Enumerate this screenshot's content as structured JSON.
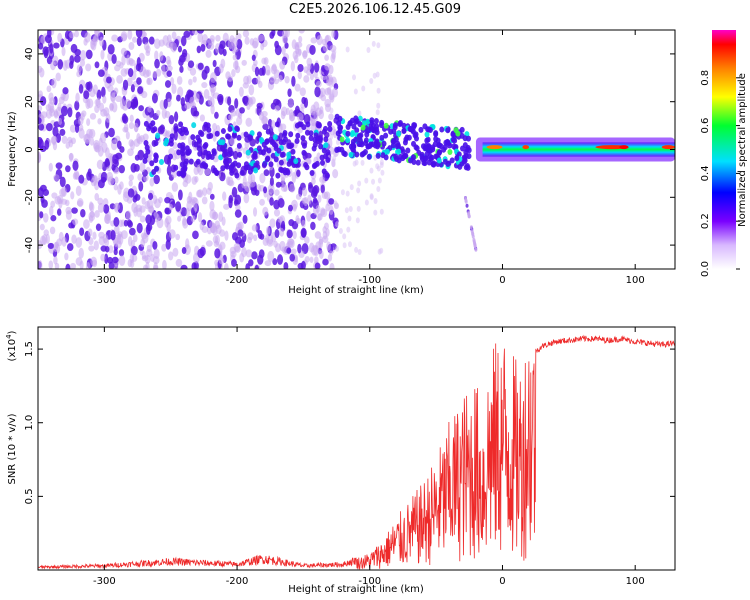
{
  "title": "C2E5.2026.106.12.45.G09",
  "colors": {
    "axis": "#000000",
    "snr_line": "#ee2a2a",
    "scatter_light": "#c8a8f0",
    "scatter_dark": "#5a18e0"
  },
  "chart_data": [
    {
      "type": "heatmap",
      "xlabel": "Height of straight line (km)",
      "ylabel": "Frequency (Hz)",
      "xlim": [
        -350,
        130
      ],
      "ylim": [
        -50,
        50
      ],
      "xticks": [
        -300,
        -200,
        -100,
        0,
        100
      ],
      "yticks": [
        -40,
        -20,
        0,
        20,
        40
      ],
      "colorbar": {
        "label": "Normalized spectral amplitude",
        "range": [
          0,
          1
        ],
        "ticks": [
          "0.0",
          "0.2",
          "0.4",
          "0.6",
          "0.8"
        ],
        "tick_values": [
          0.0,
          0.2,
          0.4,
          0.6,
          0.8
        ]
      },
      "features": [
        {
          "name": "noise",
          "x_range": [
            -350,
            -130
          ],
          "freq_range": [
            -50,
            50
          ],
          "amplitude": 0.05
        },
        {
          "name": "signal-band",
          "x_range": [
            -270,
            130
          ],
          "center_freq": 0,
          "amplitude_range": [
            0.2,
            1.0
          ]
        },
        {
          "name": "side-branch",
          "x_range": [
            -60,
            -20
          ],
          "freq_range": [
            -42,
            -15
          ],
          "amplitude": 0.15
        }
      ]
    },
    {
      "type": "line",
      "xlabel": "Height of straight line (km)",
      "ylabel": "SNR (10 * v/v)",
      "multiplier": "(x10",
      "multiplier_exp": "4",
      "multiplier_close": ")",
      "xlim": [
        -350,
        130
      ],
      "ylim": [
        0,
        1.65
      ],
      "xticks": [
        -300,
        -200,
        -100,
        0,
        100
      ],
      "yticks": [
        "0.5",
        "1.0",
        "1.5"
      ],
      "ytick_values": [
        0.5,
        1.0,
        1.5
      ],
      "series": [
        {
          "name": "SNR",
          "x": [
            -350,
            -300,
            -250,
            -200,
            -180,
            -150,
            -120,
            -100,
            -90,
            -80,
            -70,
            -60,
            -50,
            -40,
            -30,
            -20,
            -15,
            -10,
            -5,
            0,
            5,
            10,
            15,
            20,
            30,
            40,
            50,
            60,
            70,
            80,
            90,
            100,
            110,
            120,
            130
          ],
          "values": [
            0.02,
            0.03,
            0.06,
            0.04,
            0.08,
            0.03,
            0.04,
            0.1,
            0.18,
            0.3,
            0.4,
            0.5,
            0.65,
            0.85,
            1.0,
            1.1,
            0.9,
            1.25,
            1.3,
            1.38,
            1.3,
            1.2,
            1.2,
            1.45,
            1.52,
            1.55,
            1.56,
            1.57,
            1.57,
            1.56,
            1.57,
            1.55,
            1.54,
            1.53,
            1.54
          ]
        }
      ]
    }
  ]
}
